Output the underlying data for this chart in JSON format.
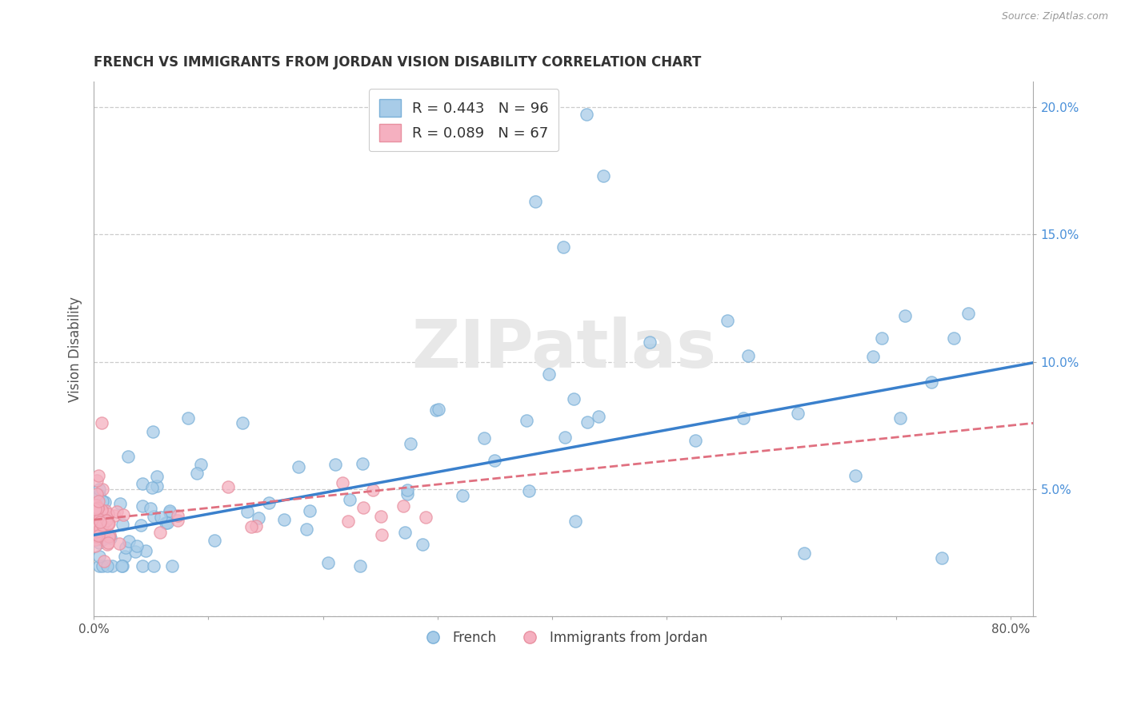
{
  "title": "FRENCH VS IMMIGRANTS FROM JORDAN VISION DISABILITY CORRELATION CHART",
  "source": "Source: ZipAtlas.com",
  "ylabel": "Vision Disability",
  "xlim": [
    0.0,
    0.82
  ],
  "ylim": [
    0.0,
    0.21
  ],
  "xtick_vals": [
    0.0,
    0.1,
    0.2,
    0.3,
    0.4,
    0.5,
    0.6,
    0.7,
    0.8
  ],
  "xtick_labels": [
    "0.0%",
    "",
    "",
    "",
    "",
    "",
    "",
    "",
    "80.0%"
  ],
  "ytick_vals": [
    0.0,
    0.05,
    0.1,
    0.15,
    0.2
  ],
  "ytick_labels": [
    "",
    "5.0%",
    "10.0%",
    "15.0%",
    "20.0%"
  ],
  "legend_entry1": "R = 0.443   N = 96",
  "legend_entry2": "R = 0.089   N = 67",
  "french_face_color": "#a8cce8",
  "french_edge_color": "#7ab0d8",
  "jordan_face_color": "#f5b0c0",
  "jordan_edge_color": "#e890a0",
  "french_line_color": "#3a80cc",
  "jordan_line_color": "#e07080",
  "ytick_color": "#4a90d9",
  "watermark_text": "ZIPatlas",
  "bg_color": "#ffffff",
  "grid_color": "#cccccc",
  "title_color": "#333333",
  "bottom_legend_french": "French",
  "bottom_legend_jordan": "Immigrants from Jordan"
}
